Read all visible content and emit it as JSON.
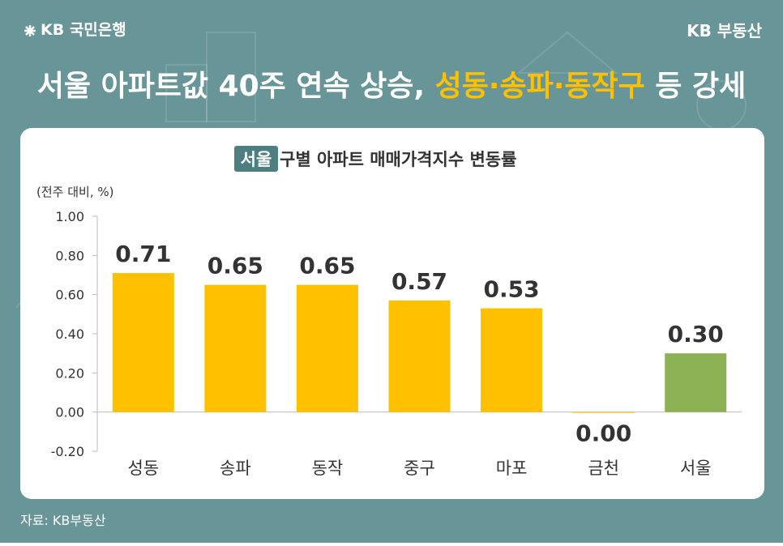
{
  "header": {
    "logo": "KB 국민은행",
    "brand": "KB 부동산",
    "title_start": "서울 아파트값 40주 연속 상승, ",
    "title_highlight": "성동·송파·동작구",
    "title_end": " 등 강세"
  },
  "chart_data": {
    "type": "bar",
    "title_highlight": "서울",
    "title": "구별 아파트 매매가격지수 변동률",
    "y_label": "(전주 대비, %)",
    "categories": [
      "성동",
      "송파",
      "동작",
      "중구",
      "마포",
      "금천",
      "서울"
    ],
    "values": [
      0.71,
      0.65,
      0.65,
      0.57,
      0.53,
      0.0,
      0.3
    ],
    "value_labels": [
      "0.71",
      "0.65",
      "0.65",
      "0.57",
      "0.53",
      "0.00",
      "0.30"
    ],
    "colors": [
      "#ffc000",
      "#ffc000",
      "#ffc000",
      "#ffc000",
      "#ffc000",
      "#ffc000",
      "#8db255"
    ],
    "ylim": [
      -0.2,
      1.0
    ],
    "yticks": [
      {
        "value": -0.2,
        "label": "-0.20"
      },
      {
        "value": 0,
        "label": "0.00"
      },
      {
        "value": 0.2,
        "label": "0.20"
      },
      {
        "value": 0.4,
        "label": "0.40"
      },
      {
        "value": 0.6,
        "label": "0.60"
      },
      {
        "value": 0.8,
        "label": "0.80"
      },
      {
        "value": 1.0,
        "label": "1.00"
      }
    ],
    "grid": false
  },
  "footer": {
    "source": "자료: KB부동산"
  }
}
